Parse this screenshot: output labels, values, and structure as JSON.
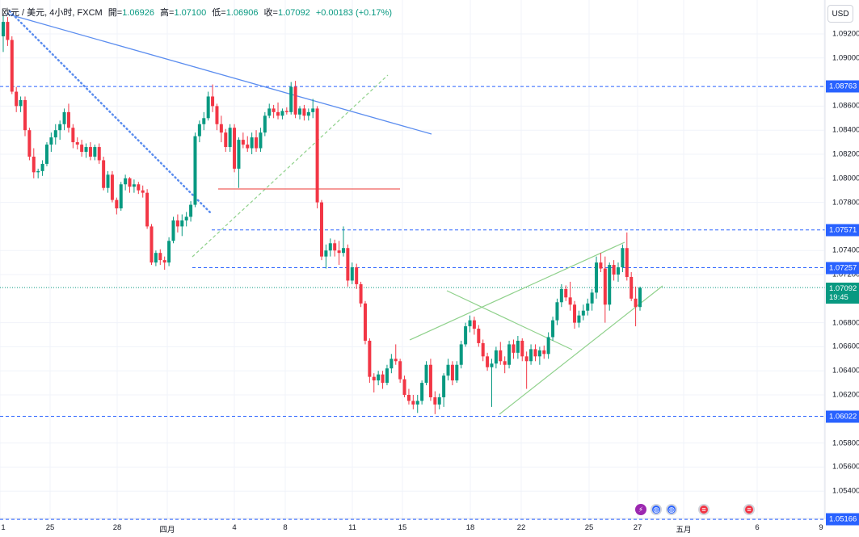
{
  "header": {
    "symbol": "欧元 / 美元, 4小时, FXCM",
    "open_label": "開=",
    "open": "1.06926",
    "high_label": "高=",
    "high": "1.07100",
    "low_label": "低=",
    "low": "1.06906",
    "close_label": "收=",
    "close": "1.07092",
    "change": "+0.00183 (+0.17%)"
  },
  "currency_button": "USD",
  "price_axis": {
    "ticks": [
      "1.09200",
      "1.09000",
      "1.08600",
      "1.08400",
      "1.08200",
      "1.08000",
      "1.07800",
      "1.07400",
      "1.07200",
      "1.06800",
      "1.06600",
      "1.06400",
      "1.06200",
      "1.05800",
      "1.05600",
      "1.05400"
    ],
    "levels": [
      "1.08763",
      "1.07571",
      "1.07257",
      "1.06022",
      "1.05166"
    ],
    "current_price": "1.07092",
    "countdown": "19:45"
  },
  "time_axis": {
    "labels": [
      "1",
      "25",
      "28",
      "四月",
      "4",
      "8",
      "11",
      "15",
      "18",
      "22",
      "25",
      "27",
      "五月",
      "6",
      "9"
    ]
  },
  "colors": {
    "up": "#089981",
    "down": "#f23645",
    "level_line": "#2962ff",
    "trend_blue": "#5b8def",
    "trend_green": "#8fd18b",
    "red_line": "#f0605d"
  },
  "chart_data": {
    "type": "candlestick",
    "instrument": "EUR/USD",
    "interval": "4h",
    "ylim": [
      1.051,
      1.0935
    ],
    "horizontal_levels": [
      1.08763,
      1.07571,
      1.07257,
      1.06022,
      1.05166
    ],
    "red_level": 1.079,
    "candles": [
      [
        1.0918,
        1.0935,
        1.0905,
        1.093
      ],
      [
        1.093,
        1.0934,
        1.091,
        1.0915
      ],
      [
        1.0915,
        1.0918,
        1.087,
        1.0872
      ],
      [
        1.0872,
        1.0876,
        1.0855,
        1.086
      ],
      [
        1.086,
        1.0868,
        1.0855,
        1.0865
      ],
      [
        1.0865,
        1.0868,
        1.0835,
        1.084
      ],
      [
        1.084,
        1.0842,
        1.0815,
        1.0818
      ],
      [
        1.0818,
        1.0825,
        1.08,
        1.0805
      ],
      [
        1.0805,
        1.0808,
        1.08,
        1.0806
      ],
      [
        1.0806,
        1.0815,
        1.0802,
        1.0812
      ],
      [
        1.0812,
        1.083,
        1.081,
        1.0828
      ],
      [
        1.0828,
        1.0838,
        1.0822,
        1.0834
      ],
      [
        1.0834,
        1.0845,
        1.0828,
        1.084
      ],
      [
        1.084,
        1.0848,
        1.0832,
        1.0845
      ],
      [
        1.0845,
        1.0858,
        1.084,
        1.0855
      ],
      [
        1.0855,
        1.0862,
        1.0838,
        1.0842
      ],
      [
        1.0842,
        1.0845,
        1.0825,
        1.083
      ],
      [
        1.083,
        1.0834,
        1.0824,
        1.0828
      ],
      [
        1.0828,
        1.0832,
        1.0818,
        1.0822
      ],
      [
        1.0822,
        1.0829,
        1.0817,
        1.0826
      ],
      [
        1.0826,
        1.083,
        1.0815,
        1.0818
      ],
      [
        1.0818,
        1.0828,
        1.0815,
        1.0826
      ],
      [
        1.0826,
        1.0829,
        1.0812,
        1.0815
      ],
      [
        1.0815,
        1.0818,
        1.079,
        1.0792
      ],
      [
        1.0792,
        1.0806,
        1.0788,
        1.0803
      ],
      [
        1.0803,
        1.0806,
        1.078,
        1.0782
      ],
      [
        1.0782,
        1.0784,
        1.077,
        1.0775
      ],
      [
        1.0775,
        1.0797,
        1.0773,
        1.0795
      ],
      [
        1.0795,
        1.0803,
        1.079,
        1.08
      ],
      [
        1.08,
        1.0801,
        1.0788,
        1.0793
      ],
      [
        1.0793,
        1.0799,
        1.0788,
        1.0795
      ],
      [
        1.0795,
        1.0797,
        1.0787,
        1.079
      ],
      [
        1.079,
        1.0794,
        1.0784,
        1.0788
      ],
      [
        1.0788,
        1.0791,
        1.0758,
        1.076
      ],
      [
        1.076,
        1.0762,
        1.0728,
        1.073
      ],
      [
        1.073,
        1.074,
        1.0727,
        1.0738
      ],
      [
        1.0738,
        1.0741,
        1.0728,
        1.0732
      ],
      [
        1.0732,
        1.0735,
        1.0724,
        1.073
      ],
      [
        1.073,
        1.0751,
        1.0727,
        1.0748
      ],
      [
        1.0748,
        1.0768,
        1.0746,
        1.0765
      ],
      [
        1.0765,
        1.077,
        1.0755,
        1.076
      ],
      [
        1.076,
        1.077,
        1.0752,
        1.0765
      ],
      [
        1.0765,
        1.0772,
        1.076,
        1.0768
      ],
      [
        1.0768,
        1.0781,
        1.0764,
        1.0778
      ],
      [
        1.0778,
        1.0838,
        1.0776,
        1.0835
      ],
      [
        1.0835,
        1.0848,
        1.083,
        1.0845
      ],
      [
        1.0845,
        1.0855,
        1.084,
        1.085
      ],
      [
        1.085,
        1.0872,
        1.0848,
        1.0868
      ],
      [
        1.0868,
        1.0878,
        1.0855,
        1.086
      ],
      [
        1.086,
        1.0862,
        1.084,
        1.0845
      ],
      [
        1.0845,
        1.0852,
        1.083,
        1.0838
      ],
      [
        1.0838,
        1.0841,
        1.0822,
        1.0826
      ],
      [
        1.0826,
        1.0845,
        1.0822,
        1.0842
      ],
      [
        1.0842,
        1.0845,
        1.0805,
        1.0808
      ],
      [
        1.0808,
        1.0834,
        1.0792,
        1.0832
      ],
      [
        1.0832,
        1.0838,
        1.0825,
        1.0828
      ],
      [
        1.0828,
        1.0835,
        1.0822,
        1.0825
      ],
      [
        1.0825,
        1.0838,
        1.082,
        1.0834
      ],
      [
        1.0834,
        1.084,
        1.0822,
        1.0825
      ],
      [
        1.0825,
        1.0842,
        1.0822,
        1.0838
      ],
      [
        1.0838,
        1.0855,
        1.0835,
        1.0852
      ],
      [
        1.0852,
        1.0862,
        1.085,
        1.0858
      ],
      [
        1.0858,
        1.0861,
        1.085,
        1.0855
      ],
      [
        1.0855,
        1.0863,
        1.0849,
        1.0852
      ],
      [
        1.0852,
        1.0858,
        1.0849,
        1.0856
      ],
      [
        1.0856,
        1.0859,
        1.0853,
        1.0855
      ],
      [
        1.0855,
        1.088,
        1.0853,
        1.0876
      ],
      [
        1.0876,
        1.0881,
        1.085,
        1.0853
      ],
      [
        1.0853,
        1.086,
        1.0849,
        1.0858
      ],
      [
        1.0858,
        1.0861,
        1.0848,
        1.0852
      ],
      [
        1.0852,
        1.0858,
        1.0848,
        1.0855
      ],
      [
        1.0855,
        1.0866,
        1.085,
        1.0858
      ],
      [
        1.0858,
        1.086,
        1.0775,
        1.078
      ],
      [
        1.078,
        1.0782,
        1.0732,
        1.0735
      ],
      [
        1.0735,
        1.0745,
        1.0725,
        1.074
      ],
      [
        1.074,
        1.075,
        1.0735,
        1.0746
      ],
      [
        1.0746,
        1.0749,
        1.0735,
        1.074
      ],
      [
        1.074,
        1.0748,
        1.0728,
        1.0738
      ],
      [
        1.0738,
        1.076,
        1.0735,
        1.0742
      ],
      [
        1.0742,
        1.0745,
        1.071,
        1.0715
      ],
      [
        1.0715,
        1.073,
        1.0712,
        1.0726
      ],
      [
        1.0726,
        1.0729,
        1.0708,
        1.0712
      ],
      [
        1.0712,
        1.0714,
        1.0693,
        1.0696
      ],
      [
        1.0696,
        1.0698,
        1.0662,
        1.0665
      ],
      [
        1.0665,
        1.0667,
        1.063,
        1.0635
      ],
      [
        1.0635,
        1.0638,
        1.0622,
        1.0632
      ],
      [
        1.0632,
        1.064,
        1.0628,
        1.0637
      ],
      [
        1.0637,
        1.064,
        1.0625,
        1.063
      ],
      [
        1.063,
        1.0645,
        1.0628,
        1.0642
      ],
      [
        1.0642,
        1.0654,
        1.0638,
        1.065
      ],
      [
        1.065,
        1.0662,
        1.0645,
        1.0648
      ],
      [
        1.0648,
        1.065,
        1.063,
        1.0633
      ],
      [
        1.0633,
        1.0636,
        1.0618,
        1.062
      ],
      [
        1.062,
        1.0625,
        1.0612,
        1.0615
      ],
      [
        1.0615,
        1.062,
        1.0608,
        1.0612
      ],
      [
        1.0612,
        1.062,
        1.0605,
        1.0615
      ],
      [
        1.0615,
        1.0632,
        1.0612,
        1.063
      ],
      [
        1.063,
        1.0648,
        1.0628,
        1.0645
      ],
      [
        1.0645,
        1.065,
        1.0615,
        1.0618
      ],
      [
        1.0618,
        1.0623,
        1.0604,
        1.0612
      ],
      [
        1.0612,
        1.0621,
        1.0608,
        1.0618
      ],
      [
        1.0618,
        1.0638,
        1.061,
        1.0636
      ],
      [
        1.0636,
        1.065,
        1.0632,
        1.0645
      ],
      [
        1.0645,
        1.0648,
        1.0628,
        1.0632
      ],
      [
        1.0632,
        1.0648,
        1.063,
        1.0645
      ],
      [
        1.0645,
        1.0665,
        1.0642,
        1.0662
      ],
      [
        1.0662,
        1.068,
        1.066,
        1.0677
      ],
      [
        1.0677,
        1.0686,
        1.0672,
        1.0682
      ],
      [
        1.0682,
        1.0685,
        1.067,
        1.0675
      ],
      [
        1.0675,
        1.0678,
        1.066,
        1.0663
      ],
      [
        1.0663,
        1.0666,
        1.0648,
        1.0652
      ],
      [
        1.0652,
        1.0655,
        1.064,
        1.0643
      ],
      [
        1.0643,
        1.065,
        1.061,
        1.0646
      ],
      [
        1.0646,
        1.066,
        1.0642,
        1.0657
      ],
      [
        1.0657,
        1.0664,
        1.0645,
        1.0648
      ],
      [
        1.0648,
        1.0652,
        1.0638,
        1.0645
      ],
      [
        1.0645,
        1.0665,
        1.0642,
        1.0662
      ],
      [
        1.0662,
        1.0666,
        1.065,
        1.0655
      ],
      [
        1.0655,
        1.0669,
        1.065,
        1.0665
      ],
      [
        1.0665,
        1.0667,
        1.0648,
        1.0652
      ],
      [
        1.0652,
        1.0656,
        1.0625,
        1.0648
      ],
      [
        1.0648,
        1.0662,
        1.0645,
        1.0658
      ],
      [
        1.0658,
        1.0662,
        1.0648,
        1.0652
      ],
      [
        1.0652,
        1.066,
        1.0645,
        1.0657
      ],
      [
        1.0657,
        1.0661,
        1.065,
        1.0654
      ],
      [
        1.0654,
        1.0672,
        1.065,
        1.0668
      ],
      [
        1.0668,
        1.0685,
        1.0665,
        1.0682
      ],
      [
        1.0682,
        1.07,
        1.0678,
        1.0697
      ],
      [
        1.0697,
        1.0712,
        1.0693,
        1.0708
      ],
      [
        1.0708,
        1.0711,
        1.0698,
        1.0701
      ],
      [
        1.0701,
        1.0714,
        1.069,
        1.0695
      ],
      [
        1.0695,
        1.0698,
        1.0675,
        1.068
      ],
      [
        1.068,
        1.069,
        1.0676,
        1.0686
      ],
      [
        1.0686,
        1.0695,
        1.0682,
        1.069
      ],
      [
        1.069,
        1.07,
        1.0686,
        1.0696
      ],
      [
        1.0696,
        1.0708,
        1.069,
        1.0705
      ],
      [
        1.0705,
        1.0735,
        1.07,
        1.073
      ],
      [
        1.073,
        1.0738,
        1.0722,
        1.0725
      ],
      [
        1.0725,
        1.0735,
        1.068,
        1.0695
      ],
      [
        1.0695,
        1.073,
        1.069,
        1.0728
      ],
      [
        1.0728,
        1.0732,
        1.0715,
        1.072
      ],
      [
        1.072,
        1.073,
        1.0714,
        1.0726
      ],
      [
        1.0726,
        1.0745,
        1.0722,
        1.0742
      ],
      [
        1.0742,
        1.0755,
        1.0715,
        1.0718
      ],
      [
        1.0718,
        1.0722,
        1.0698,
        1.07
      ],
      [
        1.07,
        1.071,
        1.0677,
        1.0693
      ],
      [
        1.0693,
        1.071,
        1.069,
        1.0709
      ]
    ]
  }
}
